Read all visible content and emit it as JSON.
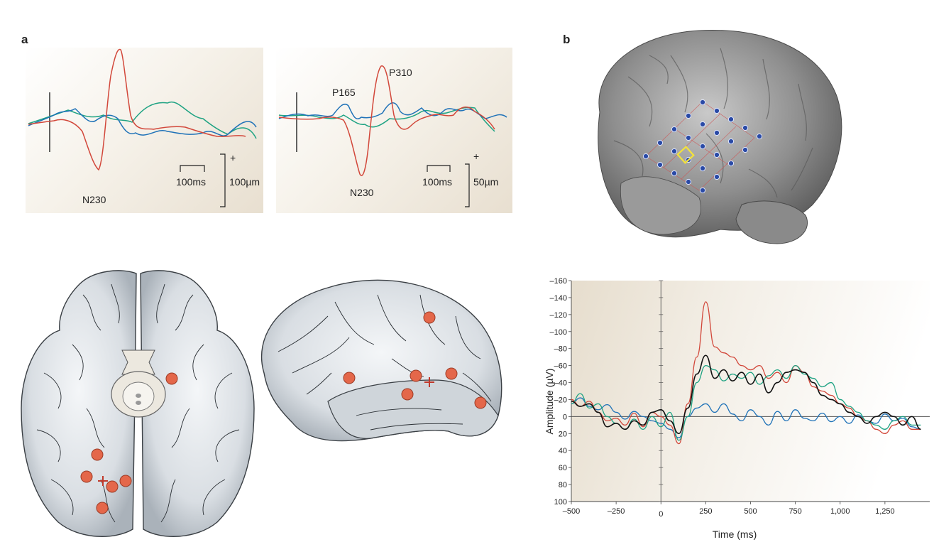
{
  "panel_a": {
    "letter": "a",
    "left_plot": {
      "peak_label": "N230",
      "time_scale": "100ms",
      "amp_scale": "100µm",
      "polarity": "+"
    },
    "right_plot": {
      "peak_labels": [
        "P165",
        "P310",
        "N230"
      ],
      "time_scale": "100ms",
      "amp_scale": "50µm",
      "polarity": "+"
    }
  },
  "panel_b": {
    "letter": "b"
  },
  "colors": {
    "red": "#d2473a",
    "green": "#1fa383",
    "blue": "#1f72b8",
    "black": "#111111",
    "dot": "#e4674a"
  },
  "chart_data": {
    "type": "line",
    "title": "",
    "xlabel": "Time (ms)",
    "ylabel": "Amplitude (µV)",
    "xlim": [
      -500,
      1500
    ],
    "ylim": [
      -160,
      100
    ],
    "y_inverted": true,
    "x_ticks": [
      "–500",
      "–250",
      "0",
      "250",
      "500",
      "750",
      "1,000",
      "1,250"
    ],
    "x_tick_values": [
      -500,
      -250,
      0,
      250,
      500,
      750,
      1000,
      1250
    ],
    "y_ticks": [
      "–160",
      "–140",
      "–120",
      "–100",
      "–80",
      "–60",
      "–40",
      "–20",
      "0",
      "20",
      "40",
      "60",
      "80",
      "100"
    ],
    "y_tick_values": [
      -160,
      -140,
      -120,
      -100,
      -80,
      -60,
      -40,
      -20,
      0,
      20,
      40,
      60,
      80,
      100
    ],
    "series": [
      {
        "color": "#1f72b8",
        "x": [
          -500,
          -450,
          -400,
          -350,
          -300,
          -250,
          -200,
          -150,
          -100,
          -50,
          0,
          50,
          100,
          150,
          200,
          250,
          300,
          350,
          400,
          450,
          500,
          550,
          600,
          650,
          700,
          750,
          800,
          850,
          900,
          950,
          1000,
          1050,
          1100,
          1150,
          1200,
          1250,
          1300,
          1350,
          1400,
          1450
        ],
        "y": [
          -15,
          -22,
          -12,
          -8,
          -14,
          -5,
          3,
          -6,
          0,
          5,
          8,
          15,
          25,
          0,
          -10,
          -15,
          -5,
          -15,
          -3,
          5,
          -8,
          0,
          10,
          -6,
          5,
          -8,
          2,
          5,
          -4,
          6,
          0,
          8,
          -2,
          5,
          8,
          -3,
          5,
          2,
          12,
          15
        ]
      },
      {
        "color": "#d2473a",
        "x": [
          -500,
          -450,
          -400,
          -350,
          -300,
          -250,
          -200,
          -150,
          -100,
          -50,
          0,
          50,
          100,
          150,
          200,
          250,
          300,
          350,
          400,
          450,
          500,
          550,
          600,
          650,
          700,
          750,
          800,
          850,
          900,
          950,
          1000,
          1050,
          1100,
          1150,
          1200,
          1250,
          1300,
          1350,
          1400,
          1450
        ],
        "y": [
          -20,
          -12,
          -18,
          -5,
          5,
          2,
          10,
          -4,
          12,
          -5,
          0,
          10,
          32,
          -15,
          -70,
          -135,
          -82,
          -75,
          -70,
          -60,
          -55,
          -60,
          -45,
          -52,
          -40,
          -60,
          -52,
          -35,
          -30,
          -25,
          -15,
          -10,
          0,
          5,
          15,
          20,
          10,
          5,
          15,
          15
        ]
      },
      {
        "color": "#1fa383",
        "x": [
          -500,
          -450,
          -400,
          -350,
          -300,
          -250,
          -200,
          -150,
          -100,
          -50,
          0,
          50,
          100,
          150,
          200,
          250,
          300,
          350,
          400,
          450,
          500,
          550,
          600,
          650,
          700,
          750,
          800,
          850,
          900,
          950,
          1000,
          1050,
          1100,
          1150,
          1200,
          1250,
          1300,
          1350,
          1400,
          1450
        ],
        "y": [
          -15,
          -27,
          -10,
          -15,
          0,
          8,
          15,
          3,
          15,
          0,
          12,
          -5,
          28,
          0,
          -40,
          -60,
          -55,
          -42,
          -50,
          -45,
          -52,
          -38,
          -48,
          -55,
          -45,
          -60,
          -50,
          -45,
          -35,
          -40,
          -20,
          -12,
          -5,
          5,
          10,
          15,
          5,
          0,
          10,
          10
        ]
      },
      {
        "color": "#111111",
        "x": [
          -500,
          -450,
          -400,
          -350,
          -300,
          -250,
          -200,
          -150,
          -100,
          -50,
          0,
          50,
          100,
          150,
          200,
          250,
          300,
          350,
          400,
          450,
          500,
          550,
          600,
          650,
          700,
          750,
          800,
          850,
          900,
          950,
          1000,
          1050,
          1100,
          1150,
          1200,
          1250,
          1300,
          1350,
          1400,
          1450
        ],
        "y": [
          -18,
          -12,
          -15,
          -5,
          12,
          8,
          15,
          5,
          10,
          -5,
          -8,
          5,
          20,
          -10,
          -50,
          -72,
          -45,
          -55,
          -42,
          -52,
          -38,
          -50,
          -28,
          -40,
          -52,
          -55,
          -52,
          -40,
          -25,
          -20,
          -15,
          -5,
          0,
          8,
          0,
          -5,
          0,
          10,
          0,
          15
        ]
      }
    ]
  }
}
